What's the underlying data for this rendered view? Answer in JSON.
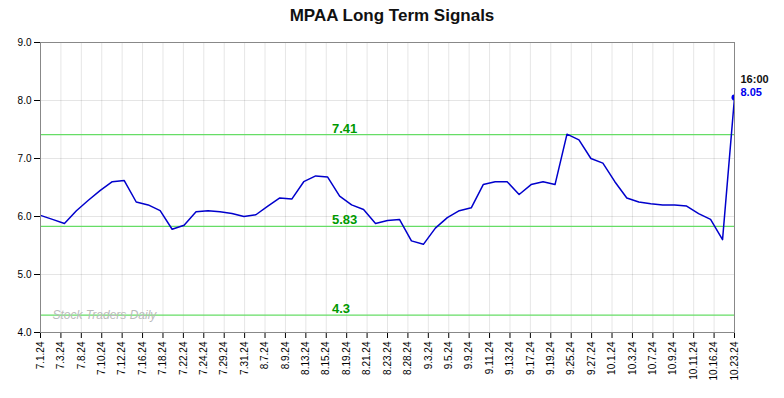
{
  "chart_data": {
    "type": "line",
    "title": "MPAA Long Term Signals",
    "color": "#0000cc",
    "grid": true,
    "x": [
      0,
      0.5862,
      1.1724,
      1.7586,
      2.3448,
      2.931,
      3.5172,
      4.1034,
      4.6897,
      5.2759,
      5.8621,
      6.4483,
      7.0345,
      7.6207,
      8.2069,
      8.7931,
      9.3793,
      9.9655,
      10.5517,
      11.1379,
      11.7241,
      12.3103,
      12.8966,
      13.4828,
      14.069,
      14.6552,
      15.2414,
      15.8276,
      16.4138,
      17,
      17.5862,
      18.1724,
      18.7586,
      19.3448,
      19.931,
      20.5172,
      21.1034,
      21.6897,
      22.2759,
      22.8621,
      23.4483,
      24.0345,
      24.6207,
      25.2069,
      25.7931,
      26.3793,
      26.9655,
      27.5517,
      28.1379,
      28.7241,
      29.3103,
      29.8966,
      30.4828,
      31.069,
      31.6552,
      32.2414,
      32.8276,
      33.4138,
      34
    ],
    "values": [
      6.02,
      5.95,
      5.88,
      6.1,
      6.28,
      6.45,
      6.6,
      6.62,
      6.25,
      6.2,
      6.1,
      5.78,
      5.85,
      6.08,
      6.1,
      6.08,
      6.05,
      6.0,
      6.03,
      6.18,
      6.32,
      6.3,
      6.6,
      6.7,
      6.68,
      6.35,
      6.2,
      6.12,
      5.88,
      5.93,
      5.95,
      5.58,
      5.52,
      5.8,
      5.98,
      6.1,
      6.15,
      6.55,
      6.6,
      6.6,
      6.38,
      6.55,
      6.6,
      6.55,
      7.42,
      7.32,
      7.0,
      6.92,
      6.6,
      6.32,
      6.25,
      6.22,
      6.2,
      6.2,
      6.18,
      6.05,
      5.95,
      5.6,
      8.05
    ],
    "xlim": [
      0,
      34
    ],
    "xticks": [
      {
        "value": 0,
        "label": "7.1.24"
      },
      {
        "value": 1,
        "label": "7.3.24"
      },
      {
        "value": 2,
        "label": "7.8.24"
      },
      {
        "value": 3,
        "label": "7.10.24"
      },
      {
        "value": 4,
        "label": "7.12.24"
      },
      {
        "value": 5,
        "label": "7.16.24"
      },
      {
        "value": 6,
        "label": "7.18.24"
      },
      {
        "value": 7,
        "label": "7.22.24"
      },
      {
        "value": 8,
        "label": "7.24.24"
      },
      {
        "value": 9,
        "label": "7.29.24"
      },
      {
        "value": 10,
        "label": "7.31.24"
      },
      {
        "value": 11,
        "label": "8.7.24"
      },
      {
        "value": 12,
        "label": "8.9.24"
      },
      {
        "value": 13,
        "label": "8.13.24"
      },
      {
        "value": 14,
        "label": "8.15.24"
      },
      {
        "value": 15,
        "label": "8.19.24"
      },
      {
        "value": 16,
        "label": "8.21.24"
      },
      {
        "value": 17,
        "label": "8.23.24"
      },
      {
        "value": 18,
        "label": "8.28.24"
      },
      {
        "value": 19,
        "label": "9.3.24"
      },
      {
        "value": 20,
        "label": "9.5.24"
      },
      {
        "value": 21,
        "label": "9.9.24"
      },
      {
        "value": 22,
        "label": "9.11.24"
      },
      {
        "value": 23,
        "label": "9.13.24"
      },
      {
        "value": 24,
        "label": "9.17.24"
      },
      {
        "value": 25,
        "label": "9.19.24"
      },
      {
        "value": 26,
        "label": "9.25.24"
      },
      {
        "value": 27,
        "label": "9.27.24"
      },
      {
        "value": 28,
        "label": "10.1.24"
      },
      {
        "value": 29,
        "label": "10.3.24"
      },
      {
        "value": 30,
        "label": "10.7.24"
      },
      {
        "value": 31,
        "label": "10.9.24"
      },
      {
        "value": 32,
        "label": "10.11.24"
      },
      {
        "value": 33,
        "label": "10.16.24"
      },
      {
        "value": 34,
        "label": "10.23.24"
      }
    ],
    "ylim": [
      4,
      9
    ],
    "yticks": [
      4,
      5,
      6,
      7,
      8,
      9
    ],
    "hlines": [
      {
        "y": 7.41,
        "color": "#66dd66",
        "label": "7.41",
        "label_color": "#009900"
      },
      {
        "y": 5.83,
        "color": "#66dd66",
        "label": "5.83",
        "label_color": "#009900"
      },
      {
        "y": 4.3,
        "color": "#66dd66",
        "label": "4.3",
        "label_color": "#009900"
      }
    ],
    "last_point_color": "#0000ee",
    "annotations": [
      {
        "text": "16:00",
        "x": 34,
        "y": 8.05,
        "color": "#111111"
      },
      {
        "text": "8.05",
        "x": 34,
        "y": 8.05,
        "color": "#0000ee"
      }
    ],
    "watermark": {
      "text": "Stock Traders Daily",
      "color": "#bbbbbb"
    }
  }
}
